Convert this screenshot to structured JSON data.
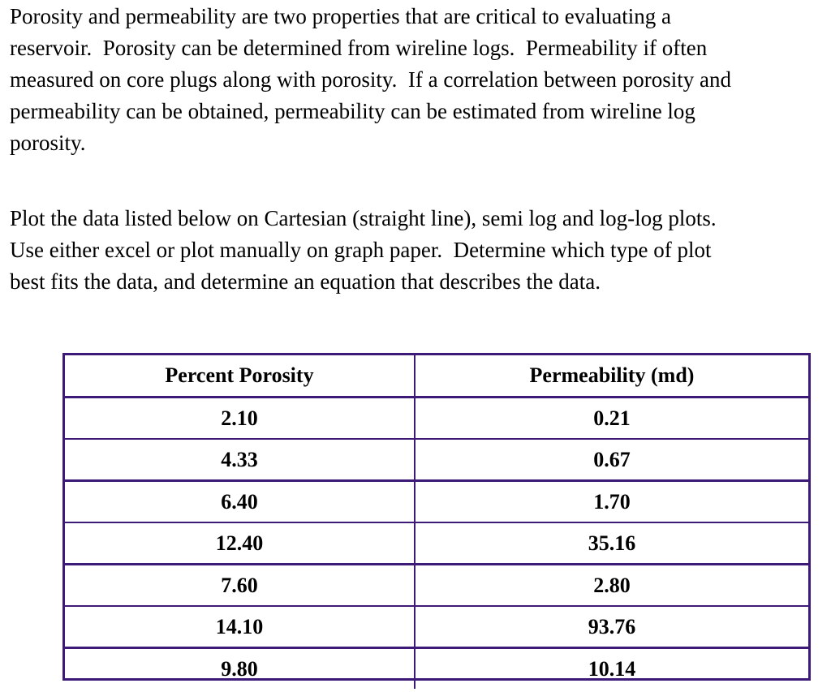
{
  "intro": {
    "lines": [
      "Porosity and permeability are two properties that are critical to evaluating a",
      "reservoir.  Porosity can be determined from wireline logs.  Permeability if often",
      "measured on core plugs along with porosity.  If a correlation between porosity and",
      "permeability can be obtained, permeability can be estimated from wireline log",
      "porosity."
    ]
  },
  "task": {
    "lines": [
      "Plot the data listed below on Cartesian (straight line), semi log and log-log plots.",
      "Use either excel or plot manually on graph paper.  Determine which type of plot",
      "best fits the data, and determine an equation that describes the data."
    ]
  },
  "table": {
    "headers": [
      "Percent Porosity",
      "Permeability (md)"
    ],
    "rows": [
      [
        "2.10",
        "0.21"
      ],
      [
        "4.33",
        "0.67"
      ],
      [
        "6.40",
        "1.70"
      ],
      [
        "12.40",
        "35.16"
      ],
      [
        "7.60",
        "2.80"
      ],
      [
        "14.10",
        "93.76"
      ],
      [
        "9.80",
        "10.14"
      ]
    ],
    "border_color": "#3d1a78"
  }
}
